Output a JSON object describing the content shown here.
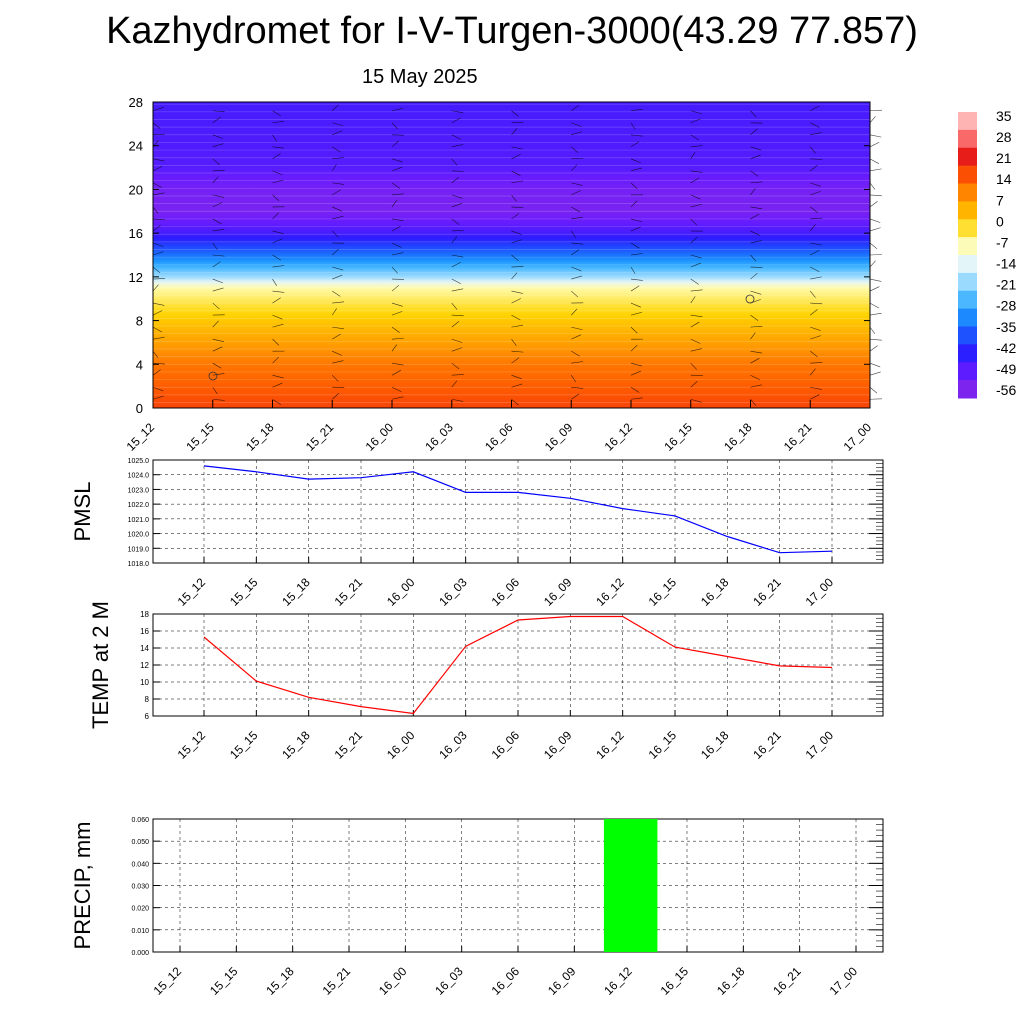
{
  "title": "Kazhydromet for I-V-Turgen-3000(43.29 77.857)",
  "subtitle": "15 May 2025",
  "chart_data": [
    {
      "type": "heatmap",
      "name": "temperature-cross-section",
      "x_tick_labels": [
        "15_12",
        "15_15",
        "15_18",
        "15_21",
        "16_00",
        "16_03",
        "16_06",
        "16_09",
        "16_12",
        "16_15",
        "16_18",
        "16_21",
        "17_00"
      ],
      "y_tick_labels": [
        "0",
        "4",
        "8",
        "12",
        "16",
        "20",
        "24",
        "28"
      ],
      "ylim": [
        0,
        28
      ],
      "colorbar_labels": [
        "35",
        "28",
        "21",
        "14",
        "7",
        "0",
        "-7",
        "-14",
        "-21",
        "-28",
        "-35",
        "-42",
        "-49",
        "-56"
      ],
      "colorbar_range": [
        -60,
        38
      ],
      "temperature_profile": [
        {
          "level": 0,
          "value": 18
        },
        {
          "level": 4,
          "value": 12
        },
        {
          "level": 8,
          "value": 2
        },
        {
          "level": 11,
          "value": -7
        },
        {
          "level": 12,
          "value": -20
        },
        {
          "level": 14,
          "value": -35
        },
        {
          "level": 16,
          "value": -48
        },
        {
          "level": 18,
          "value": -56
        },
        {
          "level": 20,
          "value": -55
        },
        {
          "level": 22,
          "value": -50
        },
        {
          "level": 28,
          "value": -48
        }
      ],
      "colors": {
        "scale": [
          "#8a2be2",
          "#6a1cff",
          "#2b1cff",
          "#1c5cff",
          "#1ca0ff",
          "#7ed0ff",
          "#e0f4ff",
          "#fffcb0",
          "#ffd400",
          "#ff9a00",
          "#ff5a00",
          "#e61b1b",
          "#ff7f7f",
          "#ffd8d8"
        ]
      }
    },
    {
      "type": "line",
      "ylabel": "PMSL",
      "x_tick_labels": [
        "15_12",
        "15_15",
        "15_18",
        "15_21",
        "16_00",
        "16_03",
        "16_06",
        "16_09",
        "16_12",
        "16_15",
        "16_18",
        "16_21",
        "17_00"
      ],
      "y_tick_labels": [
        "1018.0",
        "1019.0",
        "1020.0",
        "1021.0",
        "1022.0",
        "1023.0",
        "1024.0",
        "1025.0"
      ],
      "ylim": [
        1018,
        1025
      ],
      "values": [
        1024.6,
        1024.2,
        1023.7,
        1023.8,
        1024.2,
        1022.8,
        1022.8,
        1022.4,
        1021.7,
        1021.2,
        1019.8,
        1018.7,
        1018.8
      ],
      "color": "#0000ff"
    },
    {
      "type": "line",
      "ylabel": "TEMP at 2 M",
      "x_tick_labels": [
        "15_12",
        "15_15",
        "15_18",
        "15_21",
        "16_00",
        "16_03",
        "16_06",
        "16_09",
        "16_12",
        "16_15",
        "16_18",
        "16_21",
        "17_00"
      ],
      "y_tick_labels": [
        "6",
        "8",
        "10",
        "12",
        "14",
        "16",
        "18"
      ],
      "ylim": [
        6,
        18
      ],
      "values": [
        15.3,
        10.1,
        8.2,
        7.1,
        6.3,
        14.2,
        17.3,
        17.7,
        17.7,
        14.1,
        13.0,
        11.9,
        11.7
      ],
      "color": "#ff0000"
    },
    {
      "type": "bar",
      "ylabel": "PRECIP, mm",
      "x_tick_labels": [
        "15_12",
        "15_15",
        "15_18",
        "15_21",
        "16_00",
        "16_03",
        "16_06",
        "16_09",
        "16_12",
        "16_15",
        "16_18",
        "16_21",
        "17_00"
      ],
      "y_tick_labels": [
        "0.000",
        "0.010",
        "0.020",
        "0.030",
        "0.040",
        "0.050",
        "0.060"
      ],
      "ylim": [
        0,
        0.06
      ],
      "values": [
        0,
        0,
        0,
        0,
        0,
        0,
        0,
        0,
        0.06,
        0,
        0,
        0,
        0
      ],
      "color": "#00ff00"
    }
  ]
}
